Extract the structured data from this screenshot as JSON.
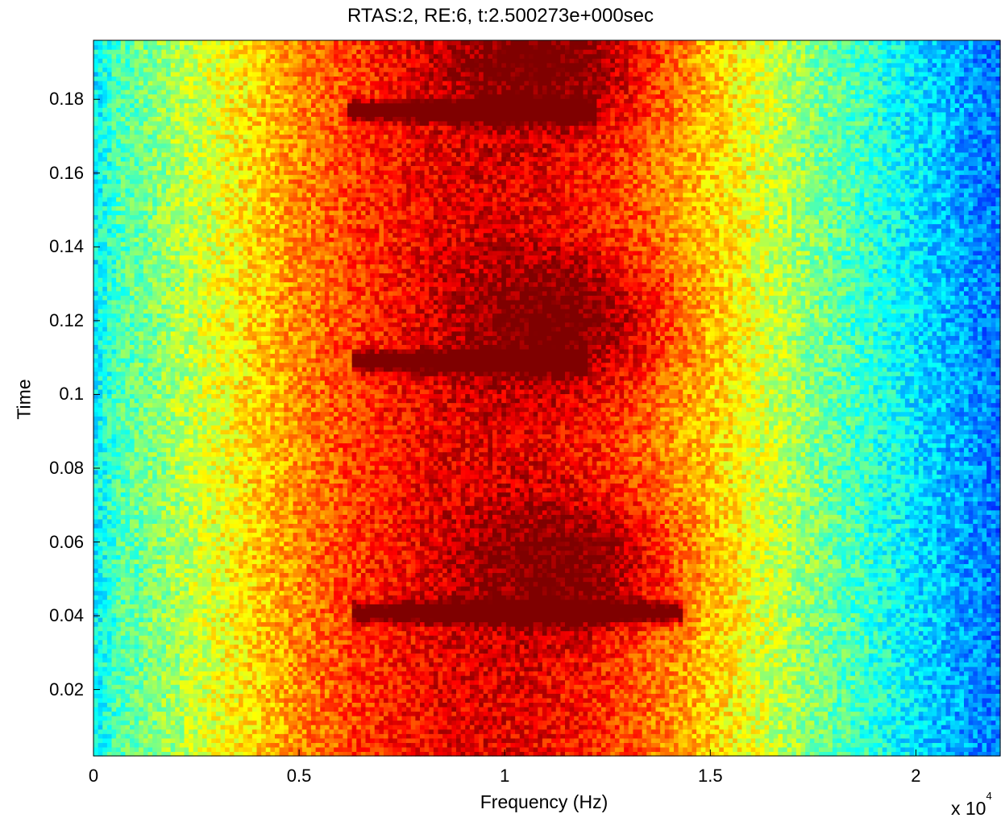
{
  "chart_data": {
    "type": "heatmap",
    "title": "RTAS:2, RE:6, t:2.500273e+000sec",
    "xlabel": "Frequency (Hz)",
    "ylabel": "Time",
    "x_multiplier_label": "x 10",
    "x_multiplier_exponent": "4",
    "xlim": [
      0,
      22050
    ],
    "ylim": [
      0.002,
      0.196
    ],
    "x_ticks": [
      {
        "value": 0,
        "label": "0"
      },
      {
        "value": 5000,
        "label": "0.5"
      },
      {
        "value": 10000,
        "label": "1"
      },
      {
        "value": 15000,
        "label": "1.5"
      },
      {
        "value": 20000,
        "label": "2"
      }
    ],
    "y_ticks": [
      {
        "value": 0.02,
        "label": "0.02"
      },
      {
        "value": 0.04,
        "label": "0.04"
      },
      {
        "value": 0.06,
        "label": "0.06"
      },
      {
        "value": 0.08,
        "label": "0.08"
      },
      {
        "value": 0.1,
        "label": "0.1"
      },
      {
        "value": 0.12,
        "label": "0.12"
      },
      {
        "value": 0.14,
        "label": "0.14"
      },
      {
        "value": 0.16,
        "label": "0.16"
      },
      {
        "value": 0.18,
        "label": "0.18"
      }
    ],
    "colormap": "jet",
    "grid": false,
    "chirps": [
      {
        "time": 0.041,
        "freq_start": 6300,
        "freq_end": 14300,
        "peak_freq": 11800,
        "peak_time": 0.053
      },
      {
        "time": 0.109,
        "freq_start": 6300,
        "freq_end": 12000,
        "peak_freq": 11600,
        "peak_time": 0.12
      },
      {
        "time": 0.177,
        "freq_start": 6200,
        "freq_end": 12200,
        "peak_freq": 11300,
        "peak_time": 0.19
      }
    ]
  }
}
